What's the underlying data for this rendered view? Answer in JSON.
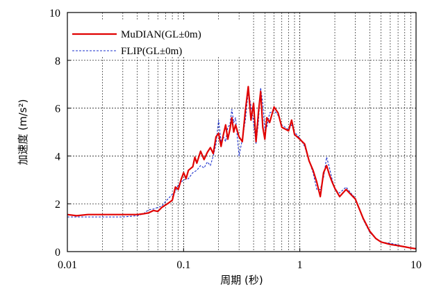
{
  "chart_data": {
    "type": "line",
    "title": "",
    "xlabel": "周期 (秒)",
    "ylabel": "加速度 (m/s²)",
    "xscale": "log",
    "xlim": [
      0.01,
      10
    ],
    "ylim": [
      0,
      10
    ],
    "x_ticks": [
      {
        "value": 0.01,
        "label": "0.01"
      },
      {
        "value": 0.1,
        "label": "0.1"
      },
      {
        "value": 1,
        "label": "1"
      },
      {
        "value": 10,
        "label": "10"
      }
    ],
    "y_ticks": [
      {
        "value": 0,
        "label": "0"
      },
      {
        "value": 2,
        "label": "2"
      },
      {
        "value": 4,
        "label": "4"
      },
      {
        "value": 6,
        "label": "6"
      },
      {
        "value": 8,
        "label": "8"
      },
      {
        "value": 10,
        "label": "10"
      }
    ],
    "grid": true,
    "legend_position": "top-left",
    "series": [
      {
        "name": "MuDIAN(GL±0m)",
        "color": "#e00000",
        "style": "solid",
        "points": [
          [
            0.01,
            1.55
          ],
          [
            0.012,
            1.5
          ],
          [
            0.015,
            1.55
          ],
          [
            0.02,
            1.55
          ],
          [
            0.03,
            1.55
          ],
          [
            0.04,
            1.55
          ],
          [
            0.045,
            1.58
          ],
          [
            0.05,
            1.62
          ],
          [
            0.055,
            1.72
          ],
          [
            0.06,
            1.68
          ],
          [
            0.065,
            1.85
          ],
          [
            0.07,
            1.95
          ],
          [
            0.075,
            2.05
          ],
          [
            0.08,
            2.15
          ],
          [
            0.085,
            2.7
          ],
          [
            0.09,
            2.6
          ],
          [
            0.095,
            3.0
          ],
          [
            0.1,
            3.3
          ],
          [
            0.105,
            3.05
          ],
          [
            0.11,
            3.4
          ],
          [
            0.12,
            3.55
          ],
          [
            0.125,
            3.95
          ],
          [
            0.13,
            3.7
          ],
          [
            0.14,
            4.2
          ],
          [
            0.15,
            3.85
          ],
          [
            0.16,
            4.15
          ],
          [
            0.17,
            4.35
          ],
          [
            0.18,
            4.1
          ],
          [
            0.19,
            4.8
          ],
          [
            0.2,
            4.95
          ],
          [
            0.21,
            4.4
          ],
          [
            0.22,
            4.9
          ],
          [
            0.23,
            5.3
          ],
          [
            0.24,
            4.7
          ],
          [
            0.25,
            5.1
          ],
          [
            0.26,
            5.6
          ],
          [
            0.27,
            5.0
          ],
          [
            0.28,
            5.3
          ],
          [
            0.3,
            4.8
          ],
          [
            0.32,
            4.6
          ],
          [
            0.34,
            5.9
          ],
          [
            0.36,
            6.9
          ],
          [
            0.38,
            5.5
          ],
          [
            0.4,
            6.2
          ],
          [
            0.42,
            4.6
          ],
          [
            0.44,
            5.8
          ],
          [
            0.46,
            6.7
          ],
          [
            0.48,
            5.2
          ],
          [
            0.5,
            4.7
          ],
          [
            0.52,
            5.6
          ],
          [
            0.55,
            5.4
          ],
          [
            0.6,
            6.05
          ],
          [
            0.65,
            5.8
          ],
          [
            0.7,
            5.2
          ],
          [
            0.8,
            5.05
          ],
          [
            0.85,
            5.5
          ],
          [
            0.9,
            4.9
          ],
          [
            1.0,
            4.7
          ],
          [
            1.1,
            4.5
          ],
          [
            1.2,
            3.8
          ],
          [
            1.3,
            3.4
          ],
          [
            1.4,
            2.9
          ],
          [
            1.5,
            2.3
          ],
          [
            1.6,
            3.3
          ],
          [
            1.7,
            3.6
          ],
          [
            1.8,
            3.2
          ],
          [
            1.9,
            2.9
          ],
          [
            2.0,
            2.65
          ],
          [
            2.2,
            2.3
          ],
          [
            2.5,
            2.6
          ],
          [
            2.8,
            2.35
          ],
          [
            3.0,
            2.2
          ],
          [
            3.5,
            1.4
          ],
          [
            4.0,
            0.85
          ],
          [
            4.5,
            0.55
          ],
          [
            5.0,
            0.4
          ],
          [
            6.0,
            0.3
          ],
          [
            7.0,
            0.25
          ],
          [
            8.0,
            0.2
          ],
          [
            9.0,
            0.15
          ],
          [
            10.0,
            0.12
          ]
        ]
      },
      {
        "name": "FLIP(GL±0m)",
        "color": "#1a2fcc",
        "style": "dashed",
        "points": [
          [
            0.01,
            1.45
          ],
          [
            0.012,
            1.45
          ],
          [
            0.015,
            1.45
          ],
          [
            0.02,
            1.45
          ],
          [
            0.03,
            1.45
          ],
          [
            0.04,
            1.5
          ],
          [
            0.045,
            1.58
          ],
          [
            0.05,
            1.75
          ],
          [
            0.055,
            1.78
          ],
          [
            0.06,
            1.85
          ],
          [
            0.065,
            1.9
          ],
          [
            0.07,
            2.1
          ],
          [
            0.075,
            2.25
          ],
          [
            0.08,
            2.4
          ],
          [
            0.085,
            2.5
          ],
          [
            0.09,
            2.8
          ],
          [
            0.095,
            2.9
          ],
          [
            0.1,
            3.0
          ],
          [
            0.11,
            3.05
          ],
          [
            0.12,
            3.3
          ],
          [
            0.13,
            3.4
          ],
          [
            0.14,
            3.6
          ],
          [
            0.15,
            3.5
          ],
          [
            0.16,
            3.75
          ],
          [
            0.17,
            3.6
          ],
          [
            0.18,
            4.0
          ],
          [
            0.19,
            4.5
          ],
          [
            0.2,
            5.5
          ],
          [
            0.21,
            4.6
          ],
          [
            0.22,
            4.8
          ],
          [
            0.23,
            4.6
          ],
          [
            0.24,
            5.2
          ],
          [
            0.25,
            5.3
          ],
          [
            0.26,
            5.95
          ],
          [
            0.27,
            5.4
          ],
          [
            0.28,
            5.6
          ],
          [
            0.3,
            4.0
          ],
          [
            0.32,
            4.7
          ],
          [
            0.34,
            5.5
          ],
          [
            0.36,
            6.7
          ],
          [
            0.38,
            6.1
          ],
          [
            0.4,
            5.4
          ],
          [
            0.42,
            4.5
          ],
          [
            0.44,
            5.4
          ],
          [
            0.46,
            6.85
          ],
          [
            0.48,
            6.2
          ],
          [
            0.5,
            5.1
          ],
          [
            0.52,
            5.2
          ],
          [
            0.55,
            5.8
          ],
          [
            0.6,
            5.9
          ],
          [
            0.65,
            5.7
          ],
          [
            0.7,
            5.3
          ],
          [
            0.8,
            5.1
          ],
          [
            0.85,
            5.3
          ],
          [
            0.9,
            5.0
          ],
          [
            1.0,
            4.75
          ],
          [
            1.1,
            4.4
          ],
          [
            1.2,
            3.8
          ],
          [
            1.3,
            3.3
          ],
          [
            1.4,
            2.6
          ],
          [
            1.5,
            2.6
          ],
          [
            1.6,
            3.1
          ],
          [
            1.7,
            3.95
          ],
          [
            1.8,
            3.5
          ],
          [
            1.9,
            3.0
          ],
          [
            2.0,
            2.6
          ],
          [
            2.2,
            2.45
          ],
          [
            2.5,
            2.7
          ],
          [
            2.8,
            2.4
          ],
          [
            3.0,
            2.25
          ],
          [
            3.5,
            1.35
          ],
          [
            4.0,
            0.8
          ],
          [
            4.5,
            0.55
          ],
          [
            5.0,
            0.4
          ],
          [
            6.0,
            0.35
          ],
          [
            7.0,
            0.28
          ],
          [
            8.0,
            0.2
          ],
          [
            9.0,
            0.16
          ],
          [
            10.0,
            0.12
          ]
        ]
      }
    ]
  }
}
